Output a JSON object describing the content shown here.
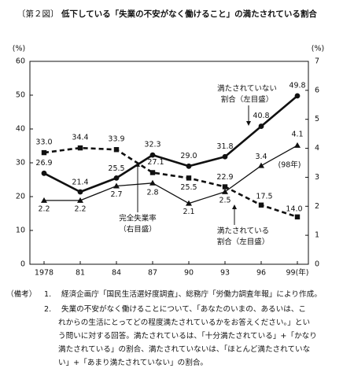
{
  "figure": {
    "number": "〔第２図〕",
    "title": "低下している「失業の不安がなく働けること」の満たされている割合"
  },
  "chart_data": {
    "type": "line",
    "x_tick_labels": [
      "1978",
      "81",
      "84",
      "87",
      "90",
      "93",
      "96",
      "99(年)"
    ],
    "left_axis": {
      "unit_label": "(%)",
      "ylim": [
        0,
        60
      ],
      "ticks": [
        "0",
        "10",
        "20",
        "30",
        "40",
        "50",
        "60"
      ]
    },
    "right_axis": {
      "unit_label": "(%)",
      "ylim": [
        0,
        7
      ],
      "ticks": [
        "0",
        "1",
        "2",
        "3",
        "4",
        "5",
        "6",
        "7"
      ]
    },
    "series": [
      {
        "name": "満たされていない割合（左目盛）",
        "axis": "left",
        "style": "solid-bold",
        "marker": "circle",
        "values": [
          26.9,
          21.4,
          25.5,
          32.3,
          29.0,
          31.8,
          40.8,
          49.8
        ],
        "labels": [
          "26.9",
          "21.4",
          "25.5",
          "32.3",
          "29.0",
          "31.8",
          "40.8",
          "49.8"
        ]
      },
      {
        "name": "満たされている割合（左目盛）",
        "axis": "left",
        "style": "dashed-bold",
        "marker": "square",
        "values": [
          33.0,
          34.4,
          33.9,
          27.1,
          25.5,
          22.9,
          17.5,
          14.0
        ],
        "labels": [
          "33.0",
          "34.4",
          "33.9",
          "27.1",
          "25.5",
          "22.9",
          "17.5",
          "14.0"
        ]
      },
      {
        "name": "完全失業率（右目盛）",
        "axis": "right",
        "style": "solid-thin",
        "marker": "triangle",
        "values": [
          2.2,
          2.2,
          2.7,
          2.8,
          2.1,
          2.5,
          3.4,
          4.1
        ],
        "labels": [
          "2.2",
          "2.2",
          "2.7",
          "2.8",
          "2.1",
          "2.5",
          "3.4",
          "4.1"
        ]
      }
    ],
    "annotations": {
      "unsatisfied_l1": "満たされていない",
      "unsatisfied_l2": "割合（左目盛）",
      "satisfied_l1": "満たされている",
      "satisfied_l2": "割合（左目盛）",
      "unemp_l1": "完全失業率",
      "unemp_l2": "（右目盛）",
      "year_98": "(98年)"
    }
  },
  "notes": {
    "label": "（備考）",
    "items": [
      {
        "num": "1.",
        "lines": [
          "経済企画庁「国民生活選好度調査」、総務庁「労働力調査年報」により作成。"
        ]
      },
      {
        "num": "2.",
        "lines": [
          "失業の不安がなく働けることについて、「あなたのいまの、あるいは、こ",
          "れからの生活にとってどの程度満たされているかをお答えください。」とい",
          "う問いに対する回答。満たされているは、「十分満たされている」+「かなり",
          "満たされている」の割合、満たされていないは、「ほとんど満たされていな",
          "い」+「あまり満たされていない」の割合。"
        ]
      }
    ]
  }
}
